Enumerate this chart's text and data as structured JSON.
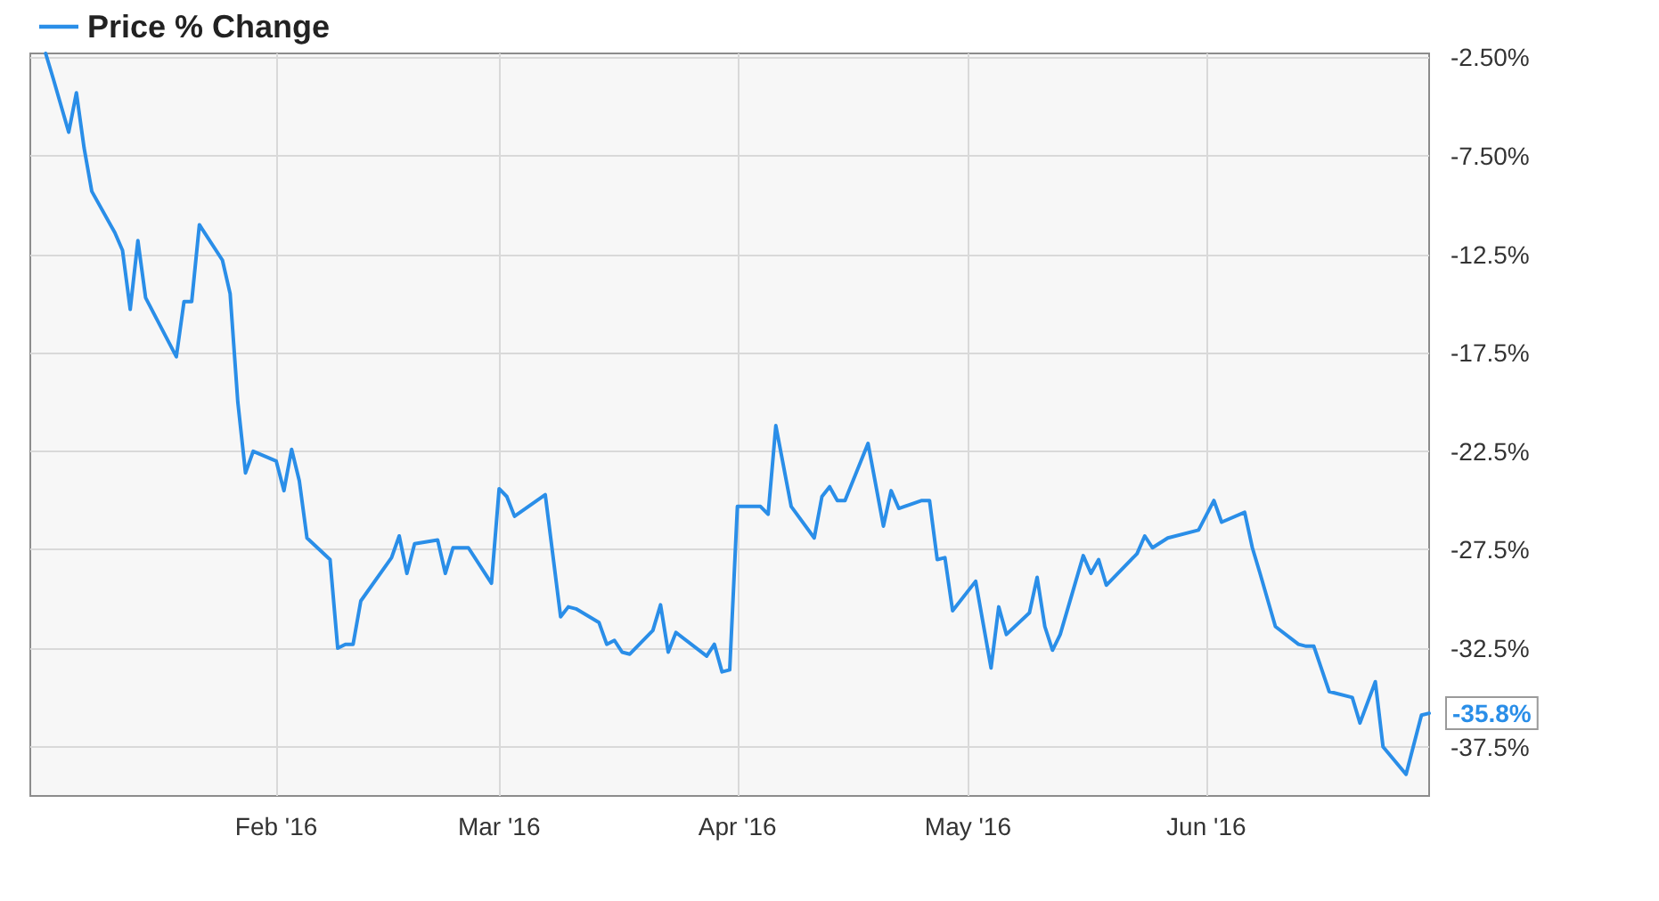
{
  "chart_data": {
    "type": "line",
    "xlim": [
      "2015-12-31",
      "2016-06-30"
    ],
    "xticks": [
      {
        "value": "2016-02-01",
        "label": "Feb '16"
      },
      {
        "value": "2016-03-01",
        "label": "Mar '16"
      },
      {
        "value": "2016-04-01",
        "label": "Apr '16"
      },
      {
        "value": "2016-05-01",
        "label": "May '16"
      },
      {
        "value": "2016-06-01",
        "label": "Jun '16"
      }
    ],
    "ylim": [
      -40,
      -2.3
    ],
    "yticks": [
      {
        "value": -2.5,
        "label": "-2.50%"
      },
      {
        "value": -7.5,
        "label": "-7.50%"
      },
      {
        "value": -12.5,
        "label": "-12.5%"
      },
      {
        "value": -17.5,
        "label": "-17.5%"
      },
      {
        "value": -22.5,
        "label": "-22.5%"
      },
      {
        "value": -27.5,
        "label": "-27.5%"
      },
      {
        "value": -32.5,
        "label": "-32.5%"
      },
      {
        "value": -37.5,
        "label": "-37.5%"
      }
    ],
    "grid": true,
    "legend": "top left",
    "annotations": [
      {
        "text": "-35.8%",
        "x": "2016-06-30",
        "y": -35.8
      }
    ],
    "x": [
      "2016-01-02",
      "2016-01-03",
      "2016-01-05",
      "2016-01-06",
      "2016-01-07",
      "2016-01-08",
      "2016-01-11",
      "2016-01-12",
      "2016-01-13",
      "2016-01-14",
      "2016-01-15",
      "2016-01-19",
      "2016-01-20",
      "2016-01-21",
      "2016-01-22",
      "2016-01-25",
      "2016-01-26",
      "2016-01-27",
      "2016-01-28",
      "2016-01-29",
      "2016-02-01",
      "2016-02-02",
      "2016-02-03",
      "2016-02-04",
      "2016-02-05",
      "2016-02-08",
      "2016-02-09",
      "2016-02-10",
      "2016-02-11",
      "2016-02-12",
      "2016-02-16",
      "2016-02-17",
      "2016-02-18",
      "2016-02-19",
      "2016-02-22",
      "2016-02-23",
      "2016-02-24",
      "2016-02-26",
      "2016-02-29",
      "2016-03-01",
      "2016-03-02",
      "2016-03-03",
      "2016-03-07",
      "2016-03-09",
      "2016-03-10",
      "2016-03-11",
      "2016-03-14",
      "2016-03-15",
      "2016-03-16",
      "2016-03-17",
      "2016-03-18",
      "2016-03-21",
      "2016-03-22",
      "2016-03-23",
      "2016-03-24",
      "2016-03-28",
      "2016-03-29",
      "2016-03-30",
      "2016-03-31",
      "2016-04-01",
      "2016-04-04",
      "2016-04-05",
      "2016-04-06",
      "2016-04-08",
      "2016-04-11",
      "2016-04-12",
      "2016-04-13",
      "2016-04-14",
      "2016-04-15",
      "2016-04-18",
      "2016-04-20",
      "2016-04-21",
      "2016-04-22",
      "2016-04-25",
      "2016-04-26",
      "2016-04-27",
      "2016-04-28",
      "2016-04-29",
      "2016-05-02",
      "2016-05-04",
      "2016-05-05",
      "2016-05-06",
      "2016-05-09",
      "2016-05-10",
      "2016-05-11",
      "2016-05-12",
      "2016-05-13",
      "2016-05-16",
      "2016-05-17",
      "2016-05-18",
      "2016-05-19",
      "2016-05-23",
      "2016-05-24",
      "2016-05-25",
      "2016-05-27",
      "2016-05-31",
      "2016-06-02",
      "2016-06-03",
      "2016-06-06",
      "2016-06-07",
      "2016-06-08",
      "2016-06-10",
      "2016-06-13",
      "2016-06-14",
      "2016-06-15",
      "2016-06-17",
      "2016-06-20",
      "2016-06-21",
      "2016-06-23",
      "2016-06-24",
      "2016-06-27",
      "2016-06-29",
      "2016-06-30"
    ],
    "series": [
      {
        "name": "Price % Change",
        "color": "#2a8ee8",
        "values": [
          -2.3,
          -3.6,
          -6.3,
          -4.3,
          -7.1,
          -9.3,
          -11.4,
          -12.3,
          -15.3,
          -11.8,
          -14.7,
          -17.7,
          -14.9,
          -14.9,
          -11.0,
          -12.8,
          -14.5,
          -20.0,
          -23.6,
          -22.5,
          -23.0,
          -24.5,
          -22.4,
          -24.0,
          -26.9,
          -28.0,
          -32.5,
          -32.3,
          -32.3,
          -30.1,
          -27.9,
          -26.8,
          -28.7,
          -27.2,
          -27.0,
          -28.7,
          -27.4,
          -27.4,
          -29.2,
          -24.4,
          -24.8,
          -25.8,
          -24.7,
          -30.9,
          -30.4,
          -30.5,
          -31.2,
          -32.3,
          -32.1,
          -32.7,
          -32.8,
          -31.6,
          -30.3,
          -32.7,
          -31.7,
          -32.9,
          -32.3,
          -33.7,
          -33.6,
          -25.3,
          -25.3,
          -25.7,
          -21.2,
          -25.3,
          -26.9,
          -24.8,
          -24.3,
          -25.0,
          -25.0,
          -22.1,
          -26.3,
          -24.5,
          -25.4,
          -25.0,
          -25.0,
          -28.0,
          -27.9,
          -30.6,
          -29.1,
          -33.5,
          -30.4,
          -31.8,
          -30.7,
          -28.9,
          -31.4,
          -32.6,
          -31.8,
          -27.8,
          -28.7,
          -28.0,
          -29.3,
          -27.7,
          -26.8,
          -27.4,
          -26.9,
          -26.5,
          -25.0,
          -26.1,
          -25.6,
          -27.4,
          -28.7,
          -31.4,
          -32.3,
          -32.4,
          -32.4,
          -34.7,
          -35.0,
          -36.3,
          -34.2,
          -37.5,
          -38.9,
          -35.9,
          -35.8
        ]
      }
    ]
  }
}
